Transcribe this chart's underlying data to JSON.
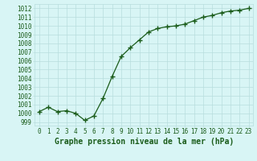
{
  "x": [
    0,
    1,
    2,
    3,
    4,
    5,
    6,
    7,
    8,
    9,
    10,
    11,
    12,
    13,
    14,
    15,
    16,
    17,
    18,
    19,
    20,
    21,
    22,
    23
  ],
  "y": [
    1000.2,
    1000.7,
    1000.2,
    1000.3,
    1000.0,
    999.2,
    999.7,
    1001.7,
    1004.2,
    1006.5,
    1007.5,
    1008.4,
    1009.3,
    1009.7,
    1009.9,
    1010.0,
    1010.2,
    1010.6,
    1011.0,
    1011.2,
    1011.5,
    1011.7,
    1011.8,
    1012.0
  ],
  "line_color": "#1a5c1a",
  "marker": "+",
  "marker_size": 4,
  "bg_color": "#d8f5f5",
  "grid_color": "#b8dede",
  "title": "Graphe pression niveau de la mer (hPa)",
  "title_color": "#1a5c1a",
  "ylabel_values": [
    999,
    1000,
    1001,
    1002,
    1003,
    1004,
    1005,
    1006,
    1007,
    1008,
    1009,
    1010,
    1011,
    1012
  ],
  "ylim": [
    998.6,
    1012.5
  ],
  "xlim": [
    -0.5,
    23.5
  ],
  "tick_label_fontsize": 5.5,
  "title_fontsize": 7.0
}
